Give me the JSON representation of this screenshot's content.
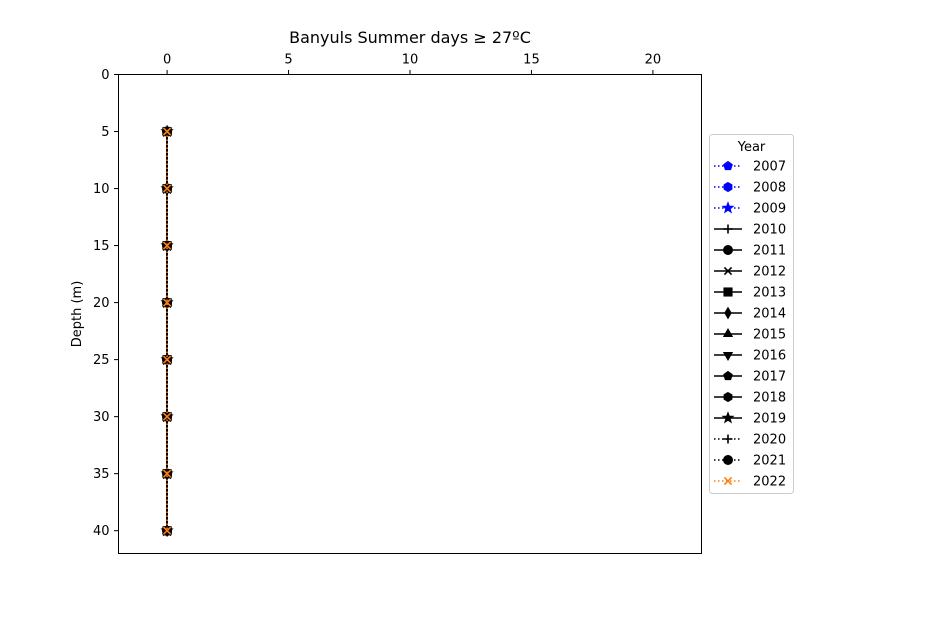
{
  "chart_data": {
    "type": "line",
    "title": "Banyuls Summer days ≥ 27ºC",
    "xlabel": "",
    "ylabel": "Depth (m)",
    "xlim": [
      -2,
      22
    ],
    "ylim": [
      0,
      42
    ],
    "y_inverted": true,
    "x_axis_position": "top",
    "xticks": [
      0,
      5,
      10,
      15,
      20
    ],
    "yticks": [
      0,
      5,
      10,
      15,
      20,
      25,
      30,
      35,
      40
    ],
    "grid": false,
    "legend": {
      "title": "Year",
      "placement": "center-right-outside"
    },
    "depths": [
      5,
      10,
      15,
      20,
      25,
      30,
      35,
      40
    ],
    "series": [
      {
        "name": "2007",
        "values": [
          0,
          0,
          0,
          0,
          0,
          0,
          0,
          0
        ],
        "color": "#0000ff",
        "marker": "pentagon",
        "linestyle": "dotted"
      },
      {
        "name": "2008",
        "values": [
          0,
          0,
          0,
          0,
          0,
          0,
          0,
          0
        ],
        "color": "#0000ff",
        "marker": "hexagon",
        "linestyle": "dotted"
      },
      {
        "name": "2009",
        "values": [
          0,
          0,
          0,
          0,
          0,
          0,
          0,
          0
        ],
        "color": "#0000ff",
        "marker": "star",
        "linestyle": "dotted"
      },
      {
        "name": "2010",
        "values": [
          0,
          0,
          0,
          0,
          0,
          0,
          0,
          0
        ],
        "color": "#000000",
        "marker": "plus",
        "linestyle": "solid"
      },
      {
        "name": "2011",
        "values": [
          0,
          0,
          0,
          0,
          0,
          0,
          0,
          0
        ],
        "color": "#000000",
        "marker": "circle",
        "linestyle": "solid"
      },
      {
        "name": "2012",
        "values": [
          0,
          0,
          0,
          0,
          0,
          0,
          0,
          0
        ],
        "color": "#000000",
        "marker": "x",
        "linestyle": "solid"
      },
      {
        "name": "2013",
        "values": [
          0,
          0,
          0,
          0,
          0,
          0,
          0,
          0
        ],
        "color": "#000000",
        "marker": "square",
        "linestyle": "solid"
      },
      {
        "name": "2014",
        "values": [
          0,
          0,
          0,
          0,
          0,
          0,
          0,
          0
        ],
        "color": "#000000",
        "marker": "diamond",
        "linestyle": "solid"
      },
      {
        "name": "2015",
        "values": [
          0,
          0,
          0,
          0,
          0,
          0,
          0,
          0
        ],
        "color": "#000000",
        "marker": "triangle-up",
        "linestyle": "solid"
      },
      {
        "name": "2016",
        "values": [
          0,
          0,
          0,
          0,
          0,
          0,
          0,
          0
        ],
        "color": "#000000",
        "marker": "triangle-down",
        "linestyle": "solid"
      },
      {
        "name": "2017",
        "values": [
          0,
          0,
          0,
          0,
          0,
          0,
          0,
          0
        ],
        "color": "#000000",
        "marker": "pentagon",
        "linestyle": "solid"
      },
      {
        "name": "2018",
        "values": [
          0,
          0,
          0,
          0,
          0,
          0,
          0,
          0
        ],
        "color": "#000000",
        "marker": "hexagon",
        "linestyle": "solid"
      },
      {
        "name": "2019",
        "values": [
          0,
          0,
          0,
          0,
          0,
          0,
          0,
          0
        ],
        "color": "#000000",
        "marker": "star",
        "linestyle": "solid"
      },
      {
        "name": "2020",
        "values": [
          0,
          0,
          0,
          0,
          0,
          0,
          0,
          0
        ],
        "color": "#000000",
        "marker": "plus",
        "linestyle": "dotted"
      },
      {
        "name": "2021",
        "values": [
          0,
          0,
          0,
          0,
          0,
          0,
          0,
          0
        ],
        "color": "#000000",
        "marker": "circle",
        "linestyle": "dotted"
      },
      {
        "name": "2022",
        "values": [
          0,
          0,
          0,
          0,
          0,
          0,
          0,
          0
        ],
        "color": "#ff7f0e",
        "marker": "x",
        "linestyle": "dotted"
      }
    ]
  }
}
